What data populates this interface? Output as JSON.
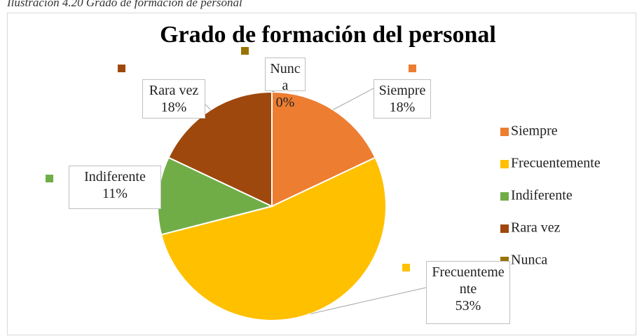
{
  "caption": "Ilustración 4.20 Grado de formación de personal",
  "chart_data": {
    "type": "pie",
    "title": "Grado de formación del personal",
    "categories": [
      "Siempre",
      "Frecuentemente",
      "Indiferente",
      "Rara vez",
      "Nunca"
    ],
    "values": [
      18,
      53,
      11,
      18,
      0
    ],
    "value_labels": [
      "18%",
      "53%",
      "11%",
      "18%",
      "0%"
    ],
    "colors": [
      "#ed7d31",
      "#ffc000",
      "#70ad47",
      "#9e480e",
      "#997300"
    ],
    "legend": "right"
  }
}
